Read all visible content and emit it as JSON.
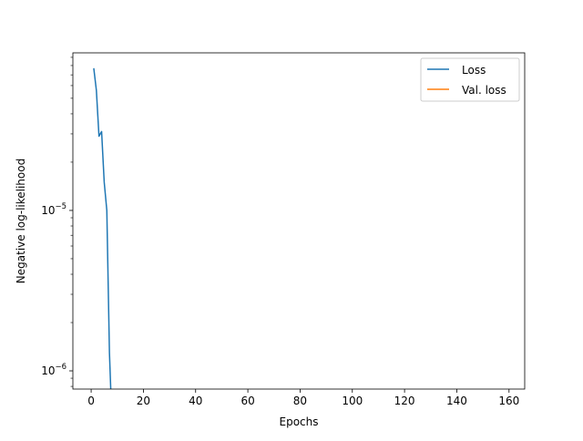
{
  "chart_data": {
    "type": "line",
    "xlabel": "Epochs",
    "ylabel": "Negative log-likelihood",
    "x_ticks": [
      0,
      20,
      40,
      60,
      80,
      100,
      120,
      140,
      160
    ],
    "x_tick_labels": [
      "0",
      "20",
      "40",
      "60",
      "80",
      "100",
      "120",
      "140",
      "160"
    ],
    "xlim": [
      -7,
      166
    ],
    "y_scale": "log",
    "ylim": [
      7.7e-07,
      9.6e-05
    ],
    "y_major_ticks": [
      1e-06,
      1e-05
    ],
    "y_major_tick_labels": [
      {
        "base": "10",
        "exp": "−6"
      },
      {
        "base": "10",
        "exp": "−5"
      }
    ],
    "y_minor_ticks": [
      8e-07,
      9e-07,
      2e-06,
      3e-06,
      4e-06,
      5e-06,
      6e-06,
      7e-06,
      8e-06,
      9e-06,
      2e-05,
      3e-05,
      4e-05,
      5e-05,
      6e-05,
      7e-05,
      8e-05,
      9e-05
    ],
    "grid": false,
    "legend_position": "top-right",
    "series": [
      {
        "name": "Loss",
        "color": "#1f77b4",
        "x": [
          1,
          2,
          3,
          4,
          5,
          6,
          7,
          7.5
        ],
        "y": [
          7.7e-05,
          5.6e-05,
          2.9e-05,
          3.1e-05,
          1.5e-05,
          1e-05,
          1.3e-06,
          7.7e-07
        ]
      },
      {
        "name": "Val. loss",
        "color": "#ff7f0e",
        "x": [],
        "y": []
      }
    ]
  }
}
